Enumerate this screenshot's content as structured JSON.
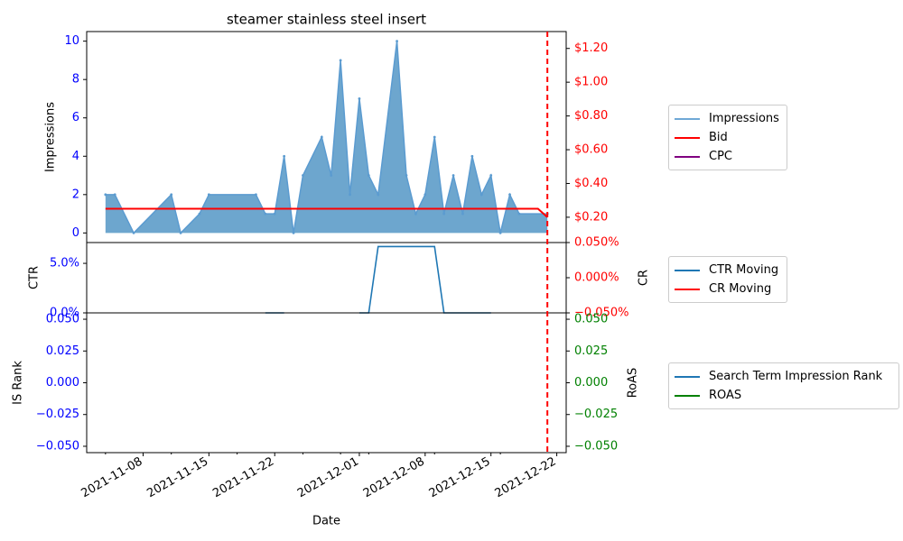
{
  "chart_data": [
    {
      "type": "area",
      "title": "steamer stainless steel insert",
      "ylabel": "Impressions",
      "ylim": [
        -0.5,
        10.5
      ],
      "yticks": [
        "0",
        "2",
        "4",
        "6",
        "8",
        "10"
      ],
      "y2ticks": [
        "$0.20",
        "$0.40",
        "$0.60",
        "$0.80",
        "$1.00",
        "$1.20"
      ],
      "y2lim": [
        0.05,
        1.3
      ],
      "series": [
        {
          "name": "Impressions",
          "color": "#1f77b4",
          "x": [
            "2021-11-04",
            "2021-11-05",
            "2021-11-07",
            "2021-11-11",
            "2021-11-12",
            "2021-11-14",
            "2021-11-15",
            "2021-11-20",
            "2021-11-21",
            "2021-11-22",
            "2021-11-23",
            "2021-11-24",
            "2021-11-25",
            "2021-11-27",
            "2021-11-28",
            "2021-11-29",
            "2021-11-30",
            "2021-12-01",
            "2021-12-02",
            "2021-12-03",
            "2021-12-05",
            "2021-12-06",
            "2021-12-07",
            "2021-12-08",
            "2021-12-09",
            "2021-12-10",
            "2021-12-11",
            "2021-12-12",
            "2021-12-13",
            "2021-12-14",
            "2021-12-15",
            "2021-12-16",
            "2021-12-17",
            "2021-12-18",
            "2021-12-21"
          ],
          "values": [
            2,
            2,
            0,
            2,
            0,
            1,
            2,
            2,
            1,
            1,
            4,
            0,
            3,
            5,
            3,
            9,
            2,
            7,
            3,
            2,
            10,
            3,
            1,
            2,
            5,
            1,
            3,
            1,
            4,
            2,
            3,
            0,
            2,
            1,
            1
          ]
        },
        {
          "name": "Bid",
          "color": "#ff0000",
          "x": [
            "2021-11-04",
            "2021-12-20",
            "2021-12-21"
          ],
          "values": [
            0.25,
            0.25,
            0.2
          ]
        },
        {
          "name": "CPC",
          "color": "#800080",
          "x": [],
          "values": []
        }
      ],
      "vline": {
        "x": "2021-12-21",
        "color": "#ff0000",
        "style": "dashed"
      }
    },
    {
      "type": "line",
      "ylabel": "CTR",
      "y2label": "CR",
      "yticks": [
        "0.0%",
        "5.0%"
      ],
      "y2ticks": [
        "−0.050%",
        "0.000%",
        "0.050%"
      ],
      "ylim": [
        0,
        7.1
      ],
      "series": [
        {
          "name": "CTR Moving",
          "color": "#1f77b4",
          "segments": [
            {
              "x": [
                "2021-11-21",
                "2021-11-23"
              ],
              "values": [
                0,
                0
              ]
            },
            {
              "x": [
                "2021-12-01",
                "2021-12-02",
                "2021-12-03",
                "2021-12-09",
                "2021-12-10",
                "2021-12-15"
              ],
              "values": [
                0,
                0,
                6.7,
                6.7,
                0,
                0
              ]
            }
          ]
        },
        {
          "name": "CR Moving",
          "color": "#ff0000",
          "segments": []
        }
      ]
    },
    {
      "type": "line",
      "ylabel": "IS Rank",
      "y2label": "RoAS",
      "xlabel": "Date",
      "yticks": [
        "−0.050",
        "−0.025",
        "0.000",
        "0.025",
        "0.050"
      ],
      "y2ticks": [
        "−0.050",
        "−0.025",
        "0.000",
        "0.025",
        "0.050"
      ],
      "ylim": [
        -0.055,
        0.055
      ],
      "xticks": [
        "2021-11-08",
        "2021-11-15",
        "2021-11-22",
        "2021-12-01",
        "2021-12-08",
        "2021-12-15",
        "2021-12-22"
      ],
      "series": [
        {
          "name": "Search Term Impression Rank",
          "color": "#1f77b4",
          "values": []
        },
        {
          "name": "ROAS",
          "color": "#008000",
          "values": []
        }
      ]
    }
  ]
}
